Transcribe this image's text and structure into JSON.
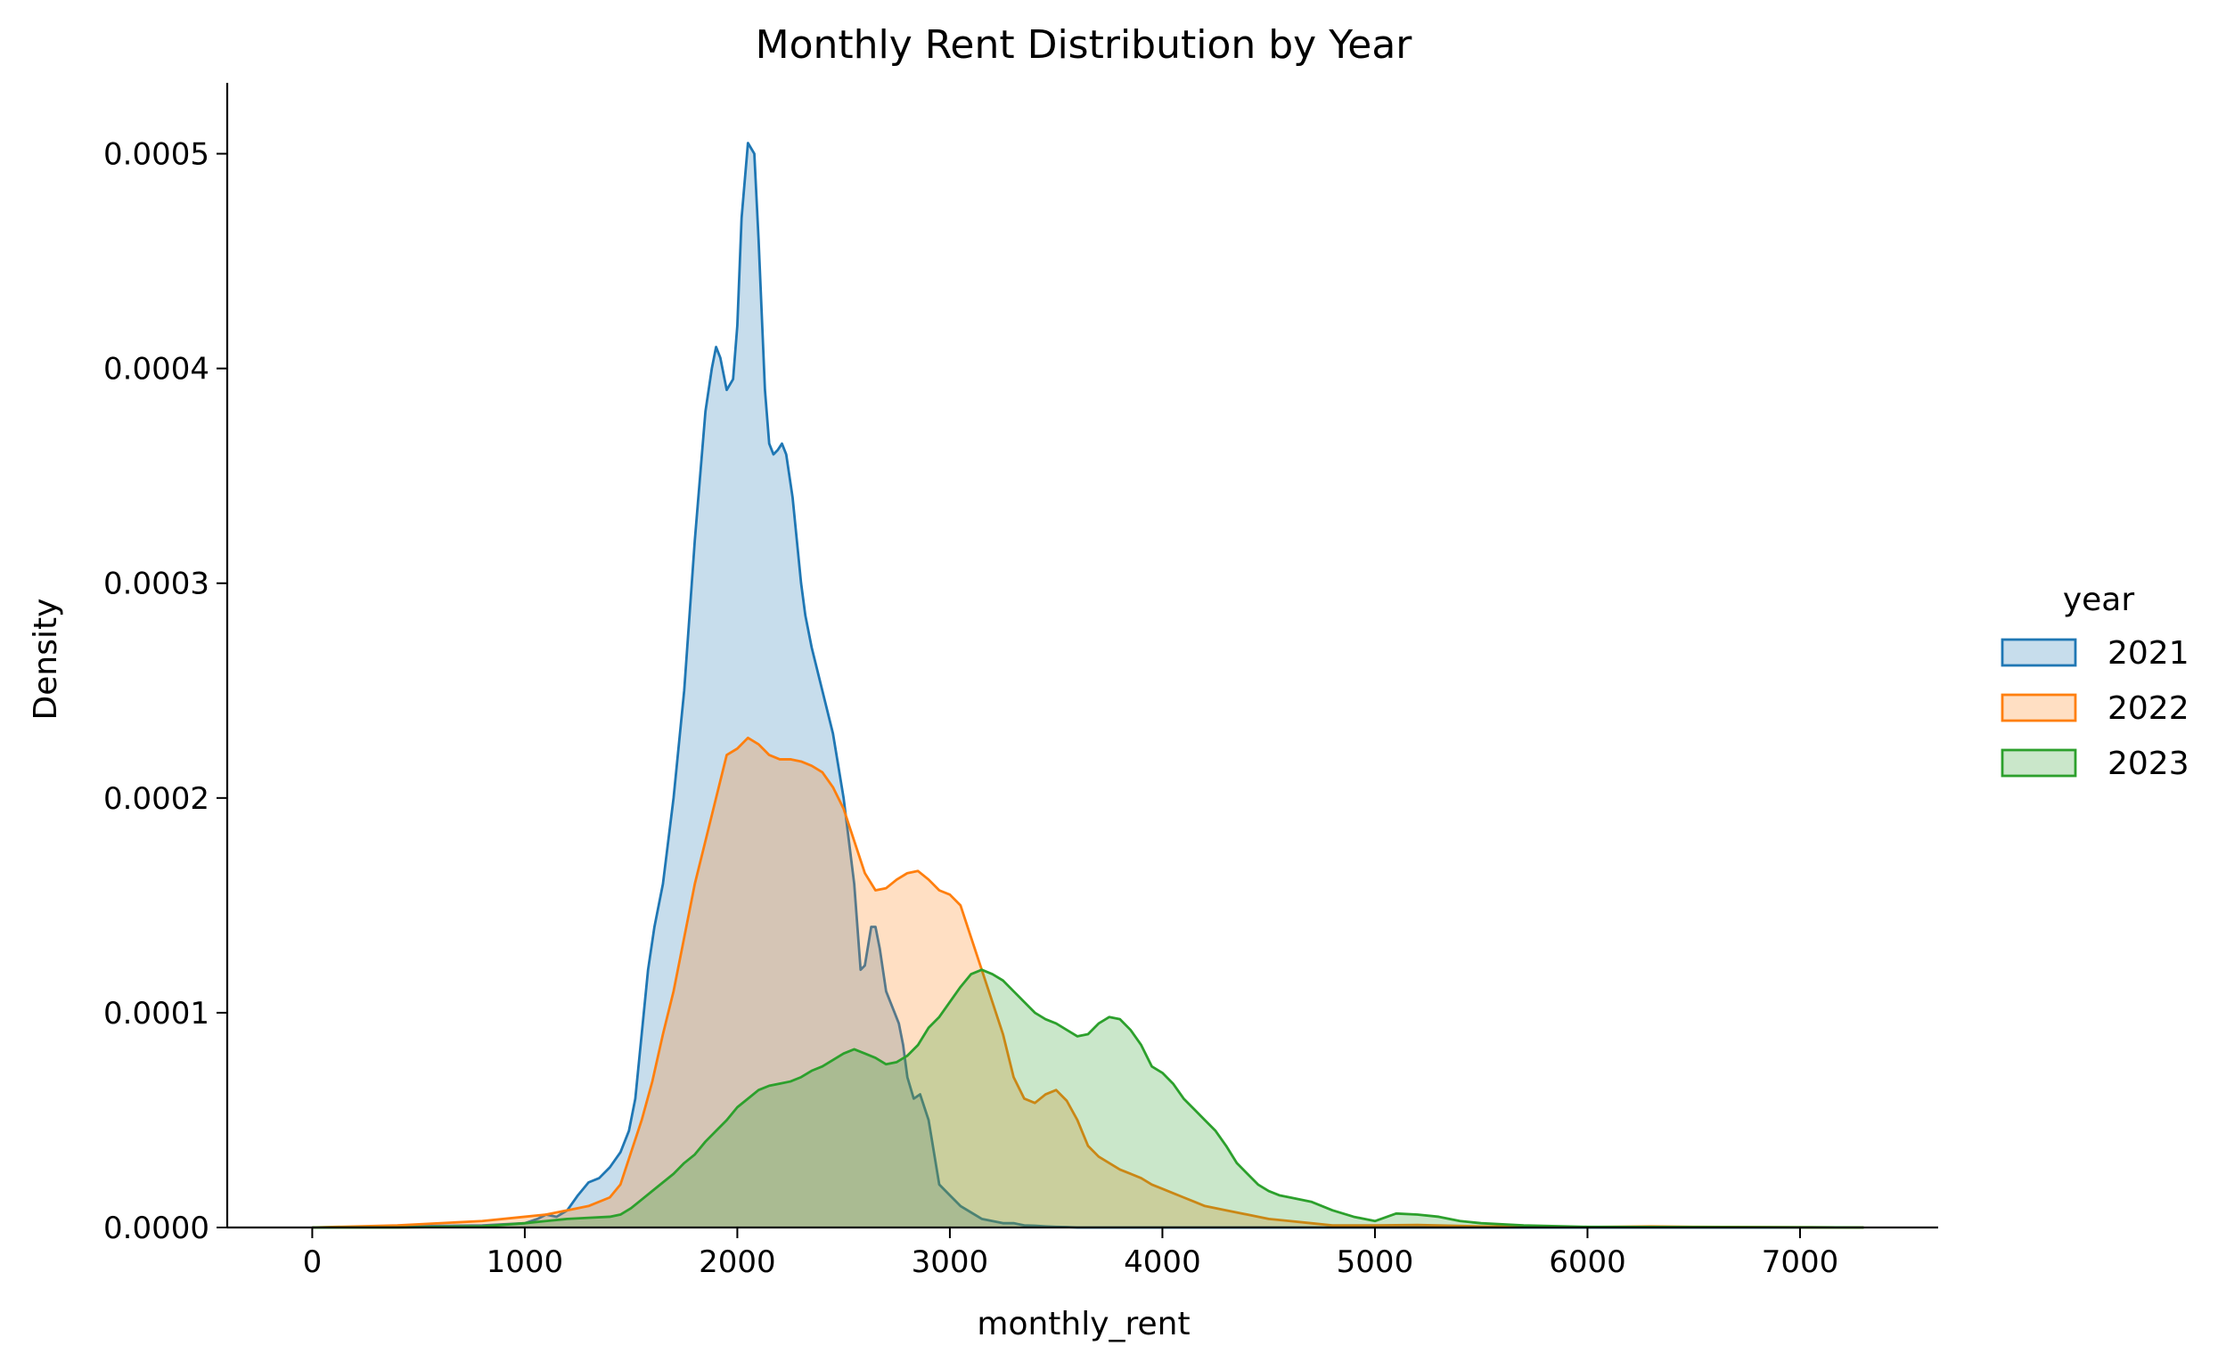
{
  "chart_data": {
    "type": "area",
    "title": "Monthly Rent Distribution by Year",
    "xlabel": "monthly_rent",
    "ylabel": "Density",
    "xlim": [
      -400,
      7650
    ],
    "ylim": [
      0,
      0.000533
    ],
    "xticks": [
      0,
      1000,
      2000,
      3000,
      4000,
      5000,
      6000,
      7000
    ],
    "xtick_labels": [
      "0",
      "1000",
      "2000",
      "3000",
      "4000",
      "5000",
      "6000",
      "7000"
    ],
    "yticks": [
      0,
      0.0001,
      0.0002,
      0.0003,
      0.0004,
      0.0005
    ],
    "ytick_labels": [
      "0.0000",
      "0.0001",
      "0.0002",
      "0.0003",
      "0.0004",
      "0.0005"
    ],
    "grid": false,
    "legend": {
      "title": "year",
      "placement": "right"
    },
    "series": [
      {
        "name": "2021",
        "color": "#1f77b4",
        "x": [
          0,
          400,
          800,
          1000,
          1060,
          1100,
          1150,
          1200,
          1250,
          1300,
          1350,
          1400,
          1450,
          1490,
          1520,
          1550,
          1580,
          1610,
          1650,
          1700,
          1750,
          1800,
          1850,
          1880,
          1900,
          1920,
          1950,
          1980,
          2000,
          2020,
          2050,
          2080,
          2100,
          2130,
          2150,
          2170,
          2190,
          2210,
          2230,
          2260,
          2280,
          2300,
          2320,
          2350,
          2400,
          2450,
          2500,
          2550,
          2580,
          2600,
          2630,
          2650,
          2670,
          2700,
          2720,
          2740,
          2760,
          2780,
          2800,
          2830,
          2860,
          2900,
          2950,
          3000,
          3050,
          3100,
          3150,
          3200,
          3250,
          3300,
          3350,
          3400,
          3450,
          3500,
          3550,
          3600,
          3700,
          3800,
          3900,
          4000,
          4500,
          5000,
          6000,
          7300
        ],
        "y": [
          0,
          5e-07,
          1e-06,
          2e-06,
          4e-06,
          6e-06,
          5e-06,
          8e-06,
          1.5e-05,
          2.1e-05,
          2.3e-05,
          2.8e-05,
          3.5e-05,
          4.5e-05,
          6e-05,
          9e-05,
          0.00012,
          0.00014,
          0.00016,
          0.0002,
          0.00025,
          0.00032,
          0.00038,
          0.0004,
          0.00041,
          0.000405,
          0.00039,
          0.000395,
          0.00042,
          0.00047,
          0.000505,
          0.0005,
          0.00046,
          0.00039,
          0.000365,
          0.00036,
          0.000362,
          0.000365,
          0.00036,
          0.00034,
          0.00032,
          0.0003,
          0.000285,
          0.00027,
          0.00025,
          0.00023,
          0.0002,
          0.00016,
          0.00012,
          0.000122,
          0.00014,
          0.00014,
          0.00013,
          0.00011,
          0.000105,
          0.0001,
          9.5e-05,
          8.5e-05,
          7e-05,
          6e-05,
          6.2e-05,
          5e-05,
          2e-05,
          1.5e-05,
          1e-05,
          7e-06,
          4e-06,
          3e-06,
          2e-06,
          2e-06,
          1e-06,
          8e-07,
          5e-07,
          3e-07,
          2e-07,
          0,
          0,
          0,
          0,
          0,
          0,
          0,
          0,
          0
        ]
      },
      {
        "name": "2022",
        "color": "#ff7f0e",
        "x": [
          0,
          400,
          800,
          1000,
          1100,
          1200,
          1300,
          1400,
          1450,
          1500,
          1550,
          1600,
          1650,
          1700,
          1750,
          1800,
          1850,
          1900,
          1950,
          2000,
          2050,
          2100,
          2130,
          2150,
          2200,
          2250,
          2300,
          2350,
          2400,
          2450,
          2500,
          2550,
          2600,
          2650,
          2700,
          2750,
          2800,
          2850,
          2900,
          2950,
          3000,
          3050,
          3100,
          3150,
          3200,
          3250,
          3300,
          3350,
          3400,
          3450,
          3500,
          3550,
          3600,
          3650,
          3700,
          3750,
          3800,
          3850,
          3900,
          3950,
          4000,
          4050,
          4100,
          4150,
          4200,
          4300,
          4400,
          4500,
          4600,
          4700,
          4800,
          5000,
          5200,
          5500,
          6000,
          6300,
          6500,
          7000,
          7300
        ],
        "y": [
          0,
          1e-06,
          3e-06,
          5e-06,
          6e-06,
          8e-06,
          1e-05,
          1.4e-05,
          2e-05,
          3.5e-05,
          5e-05,
          6.8e-05,
          9e-05,
          0.00011,
          0.000135,
          0.00016,
          0.00018,
          0.0002,
          0.00022,
          0.000223,
          0.000228,
          0.000225,
          0.000222,
          0.00022,
          0.000218,
          0.000218,
          0.000217,
          0.000215,
          0.000212,
          0.000205,
          0.000195,
          0.00018,
          0.000165,
          0.000157,
          0.000158,
          0.000162,
          0.000165,
          0.000166,
          0.000162,
          0.000157,
          0.000155,
          0.00015,
          0.000135,
          0.00012,
          0.000105,
          9e-05,
          7e-05,
          6e-05,
          5.8e-05,
          6.2e-05,
          6.4e-05,
          5.9e-05,
          5e-05,
          3.8e-05,
          3.3e-05,
          3e-05,
          2.7e-05,
          2.5e-05,
          2.3e-05,
          2e-05,
          1.8e-05,
          1.6e-05,
          1.4e-05,
          1.2e-05,
          1e-05,
          8e-06,
          6e-06,
          4e-06,
          3e-06,
          2e-06,
          1e-06,
          1e-06,
          1.2e-06,
          5e-07,
          2e-07,
          5e-07,
          3e-07,
          1e-07,
          0
        ]
      },
      {
        "name": "2023",
        "color": "#2ca02c",
        "x": [
          0,
          400,
          800,
          1000,
          1100,
          1200,
          1300,
          1400,
          1450,
          1500,
          1550,
          1600,
          1650,
          1700,
          1750,
          1800,
          1850,
          1900,
          1950,
          2000,
          2050,
          2100,
          2150,
          2200,
          2250,
          2300,
          2350,
          2400,
          2450,
          2500,
          2550,
          2600,
          2650,
          2700,
          2750,
          2800,
          2850,
          2900,
          2950,
          3000,
          3050,
          3100,
          3150,
          3200,
          3250,
          3300,
          3350,
          3400,
          3450,
          3500,
          3550,
          3600,
          3650,
          3700,
          3750,
          3800,
          3850,
          3900,
          3950,
          4000,
          4050,
          4100,
          4150,
          4200,
          4250,
          4300,
          4350,
          4400,
          4450,
          4500,
          4550,
          4600,
          4700,
          4800,
          4900,
          5000,
          5100,
          5200,
          5300,
          5400,
          5500,
          5700,
          6000,
          6500,
          7000,
          7300
        ],
        "y": [
          0,
          0,
          5e-07,
          2e-06,
          3e-06,
          4e-06,
          4.5e-06,
          5e-06,
          6e-06,
          9e-06,
          1.3e-05,
          1.7e-05,
          2.1e-05,
          2.5e-05,
          3e-05,
          3.4e-05,
          4e-05,
          4.5e-05,
          5e-05,
          5.6e-05,
          6e-05,
          6.4e-05,
          6.6e-05,
          6.7e-05,
          6.8e-05,
          7e-05,
          7.3e-05,
          7.5e-05,
          7.8e-05,
          8.1e-05,
          8.3e-05,
          8.1e-05,
          7.9e-05,
          7.6e-05,
          7.7e-05,
          8e-05,
          8.5e-05,
          9.3e-05,
          9.8e-05,
          0.000105,
          0.000112,
          0.000118,
          0.00012,
          0.000118,
          0.000115,
          0.00011,
          0.000105,
          0.0001,
          9.7e-05,
          9.5e-05,
          9.2e-05,
          8.9e-05,
          9e-05,
          9.5e-05,
          9.8e-05,
          9.7e-05,
          9.2e-05,
          8.5e-05,
          7.5e-05,
          7.2e-05,
          6.7e-05,
          6e-05,
          5.5e-05,
          5e-05,
          4.5e-05,
          3.8e-05,
          3e-05,
          2.5e-05,
          2e-05,
          1.7e-05,
          1.5e-05,
          1.4e-05,
          1.2e-05,
          8e-06,
          5e-06,
          3e-06,
          6.5e-06,
          6e-06,
          5e-06,
          3e-06,
          2e-06,
          1e-06,
          3e-07,
          2e-07,
          1e-07,
          0
        ]
      }
    ]
  }
}
